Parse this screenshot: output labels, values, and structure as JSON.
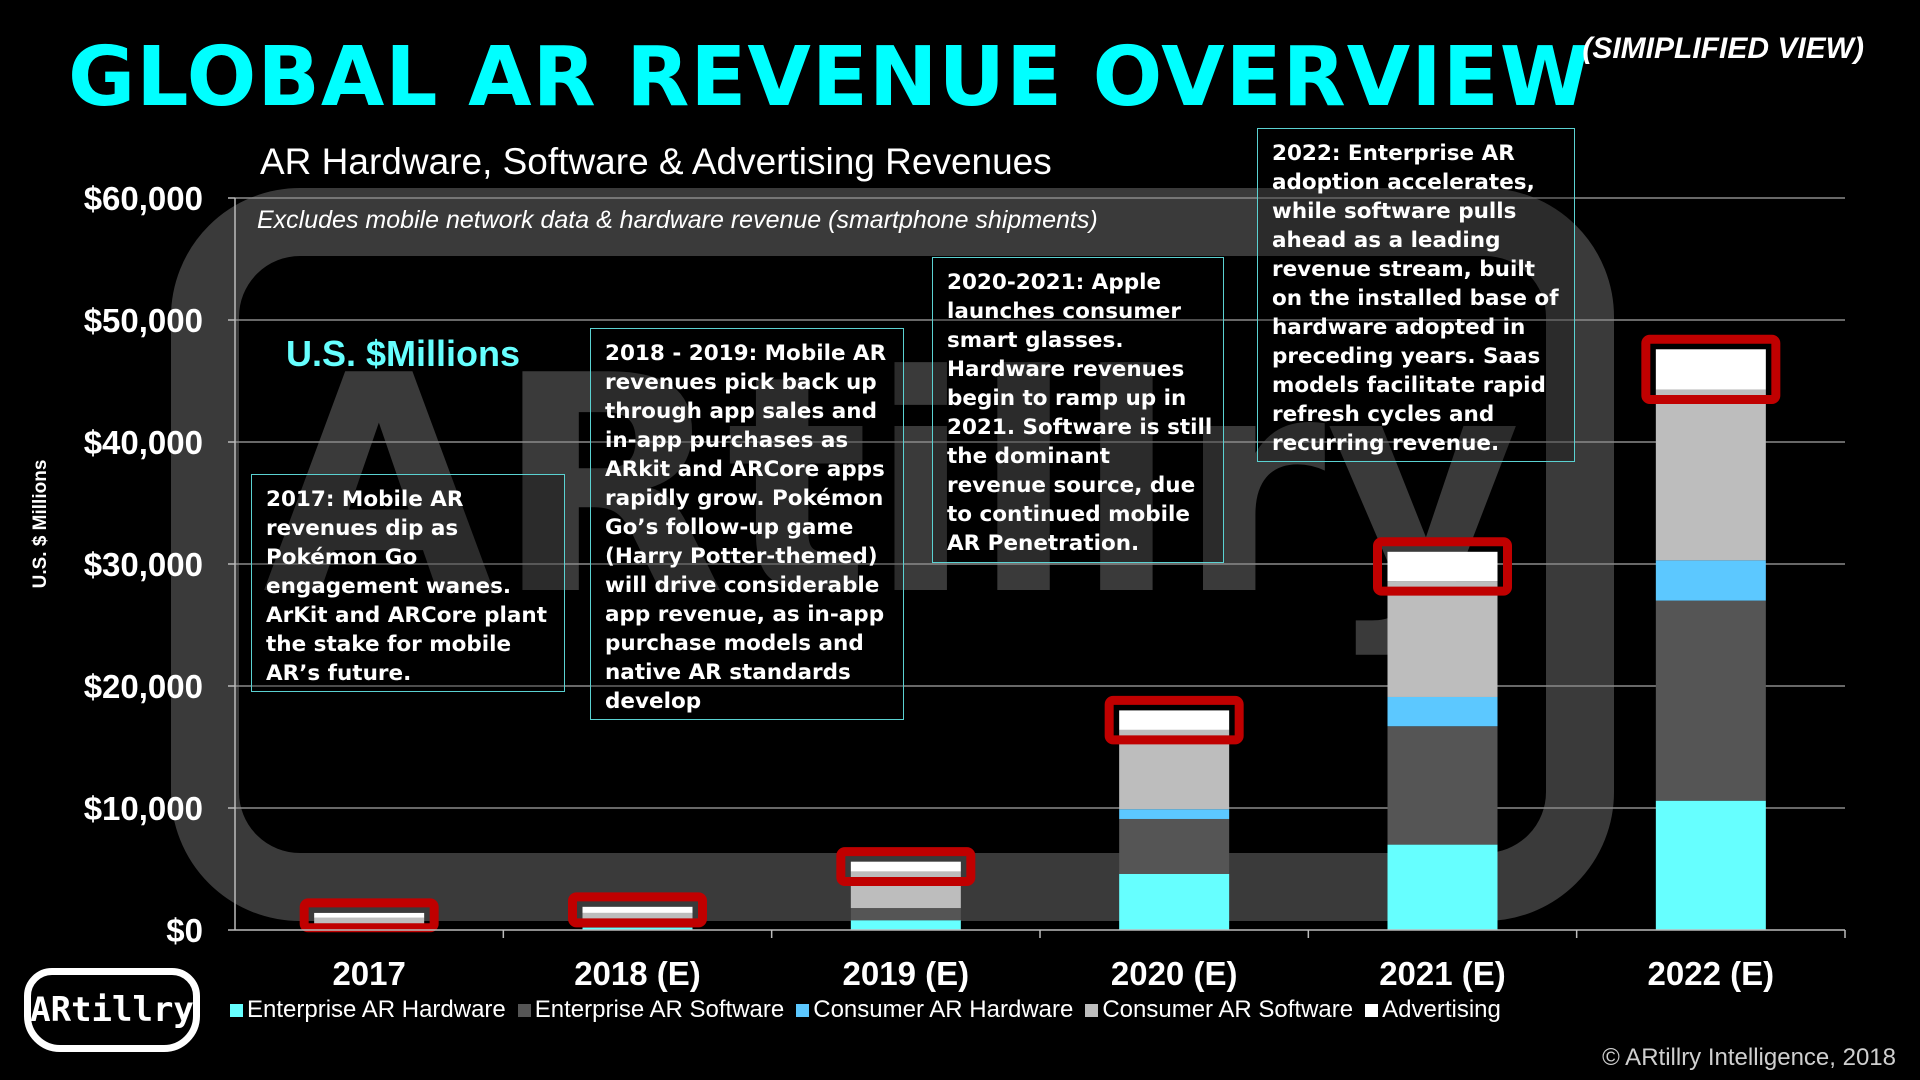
{
  "title": "GLOBAL AR REVENUE OVERVIEW",
  "view_tag": "(SIMIPLIFIED VIEW)",
  "watermark": "ARtillry",
  "copyright": "© ARtillry Intelligence, 2018",
  "logo_text": "ARtillry",
  "notes": [
    {
      "text": "2017: Mobile AR revenues dip as Pokémon Go engagement wanes. ArKit and ARCore plant the stake for mobile AR’s future."
    },
    {
      "text": "2018 - 2019: Mobile AR revenues pick back up through app sales and in-app purchases as ARkit and ARCore apps rapidly grow. Pokémon Go’s follow-up game (Harry Potter-themed) will drive considerable app revenue, as in-app purchase models and native AR standards develop"
    },
    {
      "text": "2020-2021: Apple launches consumer smart glasses. Hardware revenues begin to ramp up in 2021. Software is still the dominant revenue source, due to continued mobile AR Penetration."
    },
    {
      "text": "2022: Enterprise AR adoption accelerates, while software pulls ahead as a leading revenue stream, built on the installed base of hardware adopted in preceding years. Saas models facilitate rapid refresh cycles and recurring revenue."
    }
  ],
  "colors": {
    "Enterprise AR Hardware": "#66ffff",
    "Enterprise AR Software": "#555555",
    "Consumer AR Hardware": "#5cc8ff",
    "Consumer AR Software": "#bdbdbd",
    "Advertising": "#ffffff",
    "highlight": "#c00000"
  },
  "chart_data": {
    "type": "bar",
    "stacked": true,
    "title": "AR Hardware, Software & Advertising Revenues",
    "subtitle": "Excludes mobile network data & hardware revenue (smartphone shipments)",
    "unit_label": "U.S. $Millions",
    "ylabel": "U.S. $ Millions",
    "ylim": [
      0,
      60000
    ],
    "yticks": [
      "$0",
      "$10,000",
      "$20,000",
      "$30,000",
      "$40,000",
      "$50,000",
      "$60,000"
    ],
    "categories": [
      "2017",
      "2018 (E)",
      "2019 (E)",
      "2020 (E)",
      "2021 (E)",
      "2022 (E)"
    ],
    "series": [
      {
        "name": "Enterprise AR Hardware",
        "values": [
          100,
          200,
          800,
          4600,
          7000,
          10600
        ]
      },
      {
        "name": "Enterprise AR Software",
        "values": [
          100,
          200,
          1000,
          4500,
          9700,
          16400
        ]
      },
      {
        "name": "Consumer AR Hardware",
        "values": [
          0,
          0,
          0,
          800,
          2400,
          3300
        ]
      },
      {
        "name": "Consumer AR Software",
        "values": [
          800,
          1000,
          3000,
          6500,
          9500,
          14000
        ]
      },
      {
        "name": "Advertising",
        "values": [
          400,
          500,
          800,
          1600,
          2400,
          3300
        ]
      }
    ],
    "highlight_top_segment": true
  }
}
